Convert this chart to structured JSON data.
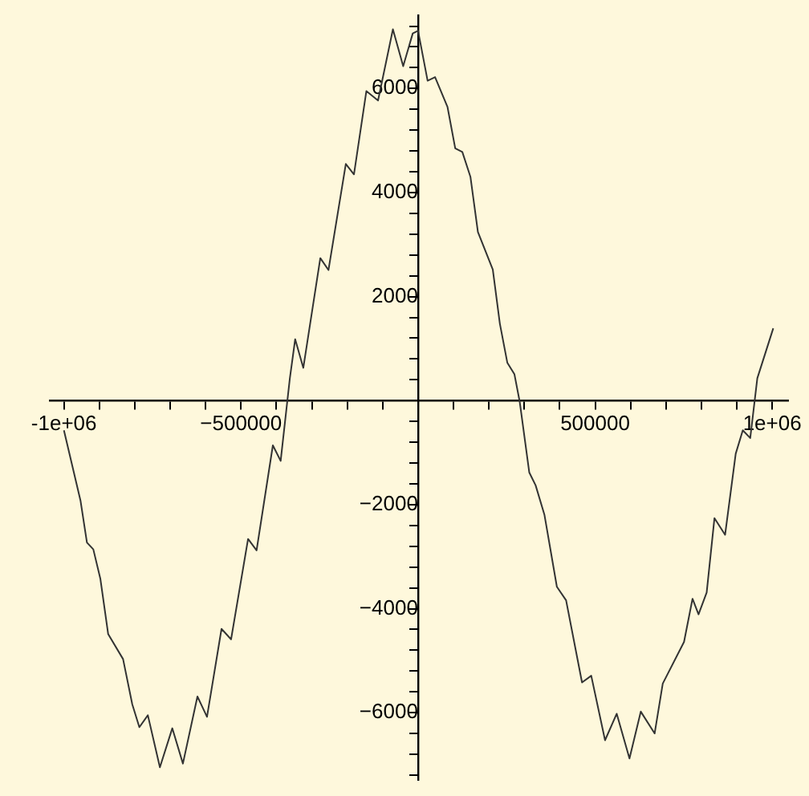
{
  "chart_data": {
    "type": "line",
    "marker": "none",
    "legend": false,
    "grid": false,
    "xlim": [
      -1040000,
      1045000
    ],
    "ylim": [
      -7300,
      7400
    ],
    "xticks": [
      {
        "value": -1000000,
        "label": "-1e+06"
      },
      {
        "value": -900000,
        "label": null
      },
      {
        "value": -800000,
        "label": null
      },
      {
        "value": -700000,
        "label": null
      },
      {
        "value": -600000,
        "label": null
      },
      {
        "value": -500000,
        "label": "−500000"
      },
      {
        "value": -400000,
        "label": null
      },
      {
        "value": -300000,
        "label": null
      },
      {
        "value": -200000,
        "label": null
      },
      {
        "value": -100000,
        "label": null
      },
      {
        "value": 100000,
        "label": null
      },
      {
        "value": 200000,
        "label": null
      },
      {
        "value": 300000,
        "label": null
      },
      {
        "value": 400000,
        "label": null
      },
      500000,
      {
        "value": 600000,
        "label": null
      },
      {
        "value": 700000,
        "label": null
      },
      {
        "value": 800000,
        "label": null
      },
      {
        "value": 900000,
        "label": null
      },
      {
        "value": 1000000,
        "label": "1e+06"
      }
    ],
    "yticks": [
      {
        "value": -7200,
        "label": null
      },
      {
        "value": -6800,
        "label": null
      },
      {
        "value": -6400,
        "label": null
      },
      {
        "value": -6000,
        "label": "−6000"
      },
      {
        "value": -5600,
        "label": null
      },
      {
        "value": -5200,
        "label": null
      },
      {
        "value": -4800,
        "label": null
      },
      {
        "value": -4400,
        "label": null
      },
      {
        "value": -4000,
        "label": "−4000"
      },
      {
        "value": -3600,
        "label": null
      },
      {
        "value": -3200,
        "label": null
      },
      {
        "value": -2800,
        "label": null
      },
      {
        "value": -2400,
        "label": null
      },
      {
        "value": -2000,
        "label": "−2000"
      },
      {
        "value": -1600,
        "label": null
      },
      {
        "value": -1200,
        "label": null
      },
      {
        "value": -800,
        "label": null
      },
      {
        "value": -400,
        "label": null
      },
      {
        "value": 400,
        "label": null
      },
      {
        "value": 800,
        "label": null
      },
      {
        "value": 1200,
        "label": null
      },
      {
        "value": 1600,
        "label": null
      },
      2000,
      {
        "value": 2400,
        "label": null
      },
      {
        "value": 2800,
        "label": null
      },
      {
        "value": 3200,
        "label": null
      },
      {
        "value": 3600,
        "label": null
      },
      4000,
      {
        "value": 4400,
        "label": null
      },
      {
        "value": 4800,
        "label": null
      },
      {
        "value": 5200,
        "label": null
      },
      {
        "value": 5600,
        "label": null
      },
      6000,
      {
        "value": 6400,
        "label": null
      },
      {
        "value": 6800,
        "label": null
      },
      {
        "value": 7200,
        "label": null
      }
    ],
    "series": [
      {
        "color": "#333333",
        "x": [
          -1000000,
          -953000,
          -935000,
          -917000,
          -897000,
          -875000,
          -833000,
          -807000,
          -787000,
          -763000,
          -729000,
          -694000,
          -664000,
          -623000,
          -596000,
          -555000,
          -528000,
          -480000,
          -456000,
          -410000,
          -388000,
          -362000,
          -347000,
          -324000,
          -276000,
          -253000,
          -204000,
          -181000,
          -146000,
          -113000,
          -71000,
          -42000,
          -15000,
          0,
          27000,
          48000,
          83000,
          105000,
          125000,
          148000,
          169000,
          211000,
          231000,
          252000,
          272000,
          287000,
          314000,
          332000,
          357000,
          392000,
          418000,
          463000,
          489000,
          528000,
          561000,
          597000,
          629000,
          668000,
          691000,
          751000,
          775000,
          792000,
          815000,
          837000,
          867000,
          897000,
          917000,
          938000,
          958000,
          1003000
        ],
        "values": [
          -570,
          -1930,
          -2730,
          -2860,
          -3430,
          -4490,
          -4970,
          -5840,
          -6280,
          -6050,
          -7050,
          -6300,
          -6980,
          -5690,
          -6080,
          -4390,
          -4590,
          -2660,
          -2880,
          -860,
          -1160,
          430,
          1180,
          630,
          2740,
          2510,
          4550,
          4350,
          5950,
          5770,
          7140,
          6430,
          7060,
          7110,
          6150,
          6220,
          5650,
          4850,
          4780,
          4300,
          3240,
          2520,
          1480,
          730,
          510,
          -20,
          -1380,
          -1630,
          -2200,
          -3580,
          -3840,
          -5420,
          -5290,
          -6530,
          -6020,
          -6880,
          -5980,
          -6400,
          -5440,
          -4640,
          -3810,
          -4110,
          -3690,
          -2260,
          -2580,
          -1020,
          -570,
          -720,
          430,
          1390
        ]
      }
    ]
  }
}
